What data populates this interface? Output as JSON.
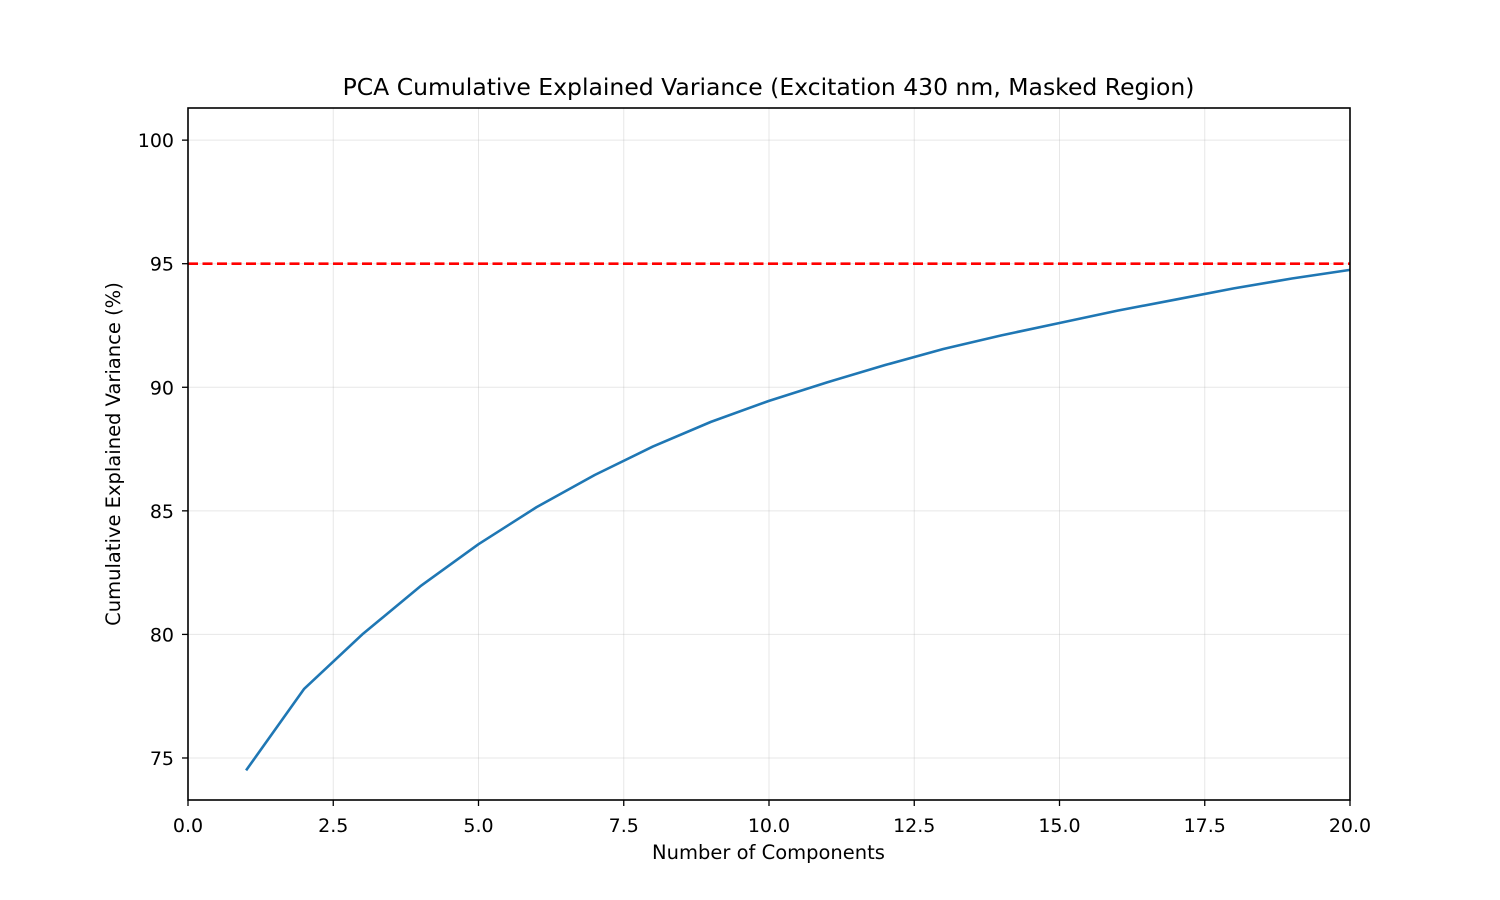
{
  "chart_data": {
    "type": "line",
    "title": "PCA Cumulative Explained Variance (Excitation 430 nm, Masked Region)",
    "xlabel": "Number of Components",
    "ylabel": "Cumulative Explained Variance (%)",
    "xlim": [
      0,
      20
    ],
    "ylim": [
      73.3,
      101.3
    ],
    "xticks": [
      0.0,
      2.5,
      5.0,
      7.5,
      10.0,
      12.5,
      15.0,
      17.5,
      20.0
    ],
    "xtick_labels": [
      "0.0",
      "2.5",
      "5.0",
      "7.5",
      "10.0",
      "12.5",
      "15.0",
      "17.5",
      "20.0"
    ],
    "yticks": [
      75,
      80,
      85,
      90,
      95,
      100
    ],
    "ytick_labels": [
      "75",
      "80",
      "85",
      "90",
      "95",
      "100"
    ],
    "grid": true,
    "series": [
      {
        "color": "#1f77b4",
        "x": [
          1,
          2,
          3,
          4,
          5,
          6,
          7,
          8,
          9,
          10,
          11,
          12,
          13,
          14,
          15,
          16,
          17,
          18,
          19,
          20
        ],
        "values": [
          74.5,
          77.8,
          80.0,
          81.95,
          83.65,
          85.15,
          86.45,
          87.6,
          88.6,
          89.45,
          90.2,
          90.9,
          91.55,
          92.1,
          92.6,
          93.1,
          93.55,
          94.0,
          94.4,
          94.75
        ]
      }
    ],
    "reference_lines": [
      {
        "orientation": "horizontal",
        "y": 95,
        "color": "#ff0000",
        "style": "dashed"
      }
    ]
  }
}
